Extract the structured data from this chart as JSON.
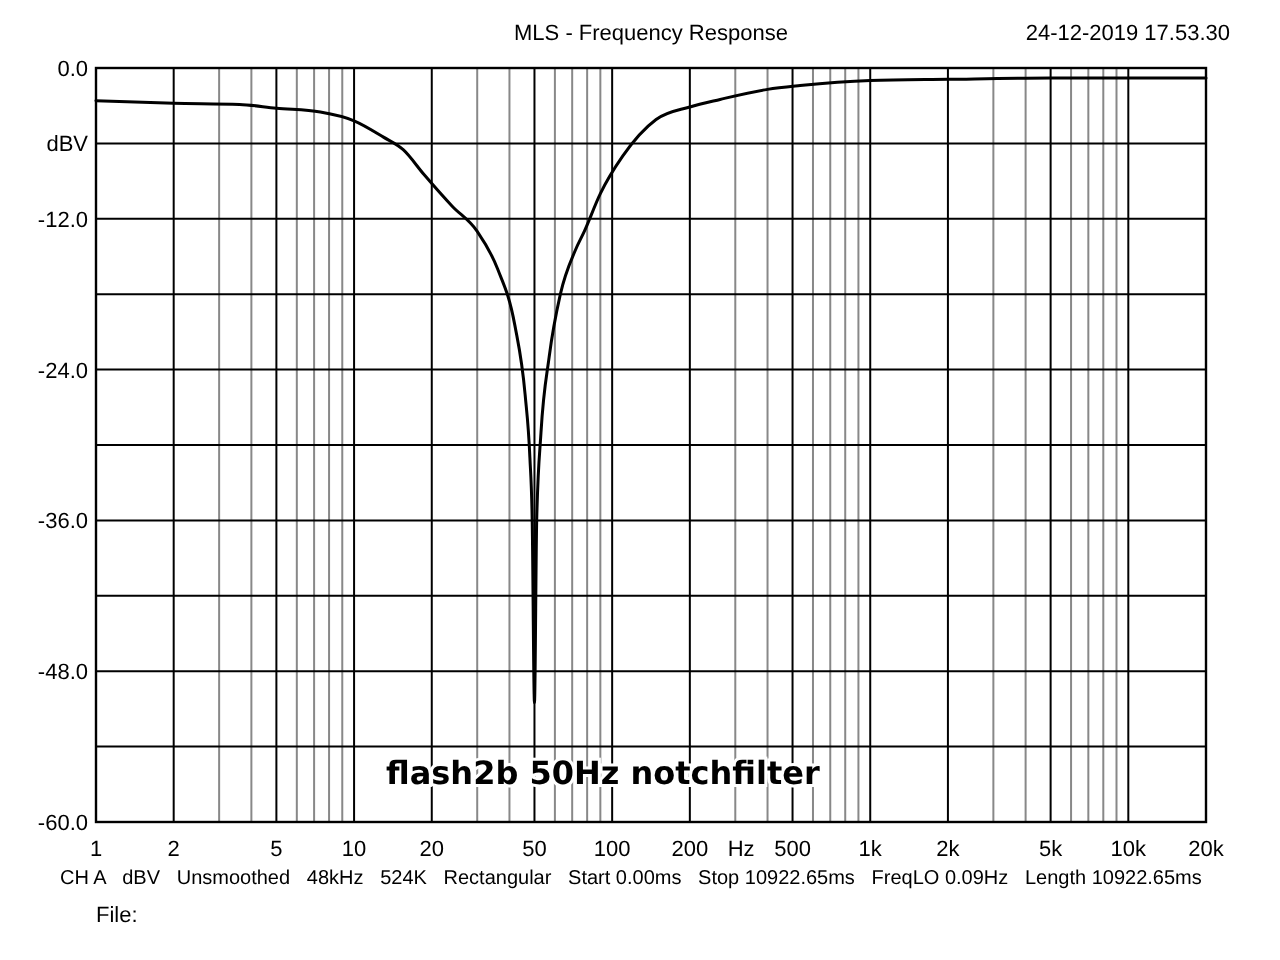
{
  "chart_data": {
    "type": "line",
    "title": "MLS - Frequency Response",
    "xlabel": "Hz",
    "ylabel": "dBV",
    "log": "x",
    "grid": true,
    "annotations": [
      "24-12-2019 17.53.30",
      "CH A   dBV   Unsmoothed   48kHz   524K   Rectangular   Start 0.00ms   Stop 10922.65ms   FreqLO 0.09Hz   Length 10922.65ms",
      "File:",
      "flash2b 50Hz notchfilter"
    ],
    "xlim": [
      1,
      20000
    ],
    "ylim": [
      -60,
      0
    ],
    "xticks": [
      1,
      2,
      {
        "value": 3,
        "label": null
      },
      {
        "value": 4,
        "label": null
      },
      5,
      {
        "value": 6,
        "label": null
      },
      {
        "value": 7,
        "label": null
      },
      {
        "value": 8,
        "label": null
      },
      {
        "value": 9,
        "label": null
      },
      10,
      20,
      {
        "value": 30,
        "label": null
      },
      {
        "value": 40,
        "label": null
      },
      50,
      {
        "value": 60,
        "label": null
      },
      {
        "value": 70,
        "label": null
      },
      {
        "value": 80,
        "label": null
      },
      {
        "value": 90,
        "label": null
      },
      100,
      200,
      {
        "value": 300,
        "label": null
      },
      {
        "value": 400,
        "label": null
      },
      500,
      {
        "value": 600,
        "label": null
      },
      {
        "value": 700,
        "label": null
      },
      {
        "value": 800,
        "label": null
      },
      {
        "value": 900,
        "label": null
      },
      {
        "value": 1000,
        "label": "1k"
      },
      {
        "value": 2000,
        "label": "2k"
      },
      {
        "value": 3000,
        "label": null
      },
      {
        "value": 4000,
        "label": null
      },
      {
        "value": 5000,
        "label": "5k"
      },
      {
        "value": 6000,
        "label": null
      },
      {
        "value": 7000,
        "label": null
      },
      {
        "value": 8000,
        "label": null
      },
      {
        "value": 9000,
        "label": null
      },
      {
        "value": 10000,
        "label": "10k"
      },
      {
        "value": 20000,
        "label": "20k"
      }
    ],
    "yticks": [
      {
        "value": 0,
        "label": "0.0"
      },
      {
        "value": -6,
        "label": null
      },
      {
        "value": -12,
        "label": "-12.0"
      },
      {
        "value": -18,
        "label": null
      },
      {
        "value": -24,
        "label": "-24.0"
      },
      {
        "value": -30,
        "label": null
      },
      {
        "value": -36,
        "label": "-36.0"
      },
      {
        "value": -42,
        "label": null
      },
      {
        "value": -48,
        "label": "-48.0"
      },
      {
        "value": -54,
        "label": null
      },
      {
        "value": -60,
        "label": "-60.0"
      }
    ],
    "x": [
      1,
      2,
      3.6,
      5,
      7.4,
      10,
      13,
      15.5,
      18.7,
      24,
      30,
      36,
      42,
      46,
      48,
      49,
      50,
      51,
      53,
      57,
      63,
      72,
      78,
      90,
      110,
      148,
      200,
      262,
      400,
      535,
      1000,
      2000,
      5000,
      20000
    ],
    "series": [
      {
        "color": "#000000",
        "values": [
          -2.6,
          -2.8,
          -2.9,
          -3.2,
          -3.5,
          -4.2,
          -5.5,
          -6.5,
          -8.5,
          -11,
          -13,
          -16,
          -20.5,
          -26,
          -31,
          -36,
          -50.5,
          -36,
          -29,
          -23,
          -18,
          -14.5,
          -13,
          -10,
          -7,
          -4.1,
          -3.1,
          -2.5,
          -1.7,
          -1.4,
          -1.0,
          -0.9,
          -0.8,
          -0.8
        ]
      }
    ]
  }
}
